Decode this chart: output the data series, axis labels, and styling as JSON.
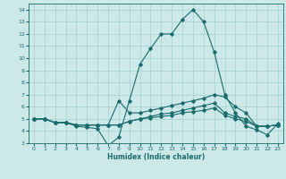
{
  "xlabel": "Humidex (Indice chaleur)",
  "bg_color": "#cce8e8",
  "grid_color": "#aad4d4",
  "line_color": "#1a6b6b",
  "xlim": [
    -0.5,
    23.5
  ],
  "ylim": [
    3,
    14.5
  ],
  "xticks": [
    0,
    1,
    2,
    3,
    4,
    5,
    6,
    7,
    8,
    9,
    10,
    11,
    12,
    13,
    14,
    15,
    16,
    17,
    18,
    19,
    20,
    21,
    22,
    23
  ],
  "yticks": [
    3,
    4,
    5,
    6,
    7,
    8,
    9,
    10,
    11,
    12,
    13,
    14
  ],
  "line1_x": [
    0,
    1,
    2,
    3,
    4,
    5,
    6,
    7,
    8,
    9,
    10,
    11,
    12,
    13,
    14,
    15,
    16,
    17,
    18,
    19,
    20,
    21,
    22,
    23
  ],
  "line1_y": [
    5.0,
    5.0,
    4.7,
    4.7,
    4.4,
    4.3,
    4.2,
    2.8,
    3.5,
    6.5,
    9.5,
    10.8,
    12.0,
    12.0,
    13.2,
    14.0,
    13.0,
    10.5,
    7.0,
    5.5,
    4.4,
    4.1,
    3.7,
    4.6
  ],
  "line2_x": [
    0,
    1,
    2,
    3,
    4,
    5,
    6,
    7,
    8,
    9,
    10,
    11,
    12,
    13,
    14,
    15,
    16,
    17,
    18,
    19,
    20,
    21,
    22,
    23
  ],
  "line2_y": [
    5.0,
    5.0,
    4.7,
    4.7,
    4.5,
    4.5,
    4.5,
    4.5,
    6.5,
    5.5,
    5.5,
    5.7,
    5.9,
    6.1,
    6.3,
    6.5,
    6.7,
    7.0,
    6.8,
    6.0,
    5.5,
    4.4,
    4.4,
    4.5
  ],
  "line3_x": [
    0,
    1,
    2,
    3,
    4,
    5,
    6,
    7,
    8,
    9,
    10,
    11,
    12,
    13,
    14,
    15,
    16,
    17,
    18,
    19,
    20,
    21,
    22,
    23
  ],
  "line3_y": [
    5.0,
    5.0,
    4.7,
    4.7,
    4.5,
    4.5,
    4.5,
    4.5,
    4.5,
    4.8,
    5.0,
    5.2,
    5.4,
    5.5,
    5.7,
    5.9,
    6.1,
    6.3,
    5.5,
    5.2,
    5.0,
    4.4,
    4.4,
    4.5
  ],
  "line4_x": [
    0,
    1,
    2,
    3,
    4,
    5,
    6,
    7,
    8,
    9,
    10,
    11,
    12,
    13,
    14,
    15,
    16,
    17,
    18,
    19,
    20,
    21,
    22,
    23
  ],
  "line4_y": [
    5.0,
    5.0,
    4.7,
    4.7,
    4.5,
    4.5,
    4.5,
    4.5,
    4.5,
    4.8,
    5.0,
    5.1,
    5.2,
    5.3,
    5.5,
    5.6,
    5.7,
    5.9,
    5.3,
    5.0,
    4.8,
    4.4,
    4.4,
    4.5
  ],
  "markersize": 1.8,
  "linewidth": 0.8
}
